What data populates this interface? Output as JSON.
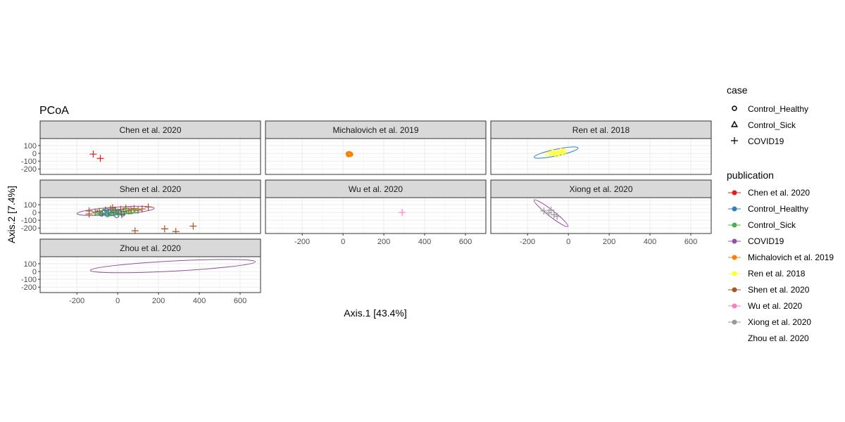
{
  "chart_data": {
    "type": "scatter",
    "title": "PCoA",
    "xlabel": "Axis.1   [43.4%]",
    "ylabel": "Axis.2   [7.4%]",
    "xlim": [
      -380,
      700
    ],
    "ylim": [
      -270,
      190
    ],
    "xticks": [
      -200,
      0,
      200,
      400,
      600
    ],
    "xtick_labels": [
      "-200",
      "0",
      "200",
      "400",
      "600"
    ],
    "yticks": [
      100,
      0,
      -100,
      -200
    ],
    "ytick_labels": [
      "100",
      "0",
      "-100",
      "-200"
    ],
    "grid": true,
    "legend_position": "right",
    "legends": {
      "case": {
        "title": "case",
        "entries": [
          {
            "label": "Control_Healthy",
            "shape": "circle"
          },
          {
            "label": "Control_Sick",
            "shape": "triangle"
          },
          {
            "label": "COVID19",
            "shape": "plus"
          }
        ]
      },
      "publication": {
        "title": "publication",
        "entries": [
          {
            "label": "Chen et al. 2020",
            "color": "#E41A1C"
          },
          {
            "label": "Control_Healthy",
            "color": "#377EB8"
          },
          {
            "label": "Control_Sick",
            "color": "#4DAF4A"
          },
          {
            "label": "COVID19",
            "color": "#984EA3"
          },
          {
            "label": "Michalovich et al. 2019",
            "color": "#FF7F00"
          },
          {
            "label": "Ren et al. 2018",
            "color": "#FFFF33"
          },
          {
            "label": "Shen et al. 2020",
            "color": "#A65628"
          },
          {
            "label": "Wu et al. 2020",
            "color": "#F781BF"
          },
          {
            "label": "Xiong et al. 2020",
            "color": "#999999"
          },
          {
            "label": "Zhou et al. 2020",
            "color": ""
          }
        ]
      }
    },
    "panels": [
      {
        "title": "Chen et al. 2020",
        "points": [
          {
            "x": -120,
            "y": -10,
            "shape": "plus",
            "color": "#E41A1C"
          },
          {
            "x": -85,
            "y": -65,
            "shape": "plus",
            "color": "#E41A1C"
          }
        ],
        "ellipses": []
      },
      {
        "title": "Michalovich et al. 2019",
        "points": [
          {
            "x": 25,
            "y": -5,
            "shape": "circle",
            "color": "#FF7F00"
          },
          {
            "x": 30,
            "y": -10,
            "shape": "circle",
            "color": "#FF7F00"
          },
          {
            "x": 35,
            "y": -8,
            "shape": "circle",
            "color": "#FF7F00"
          },
          {
            "x": 28,
            "y": -15,
            "shape": "circle",
            "color": "#FF7F00"
          },
          {
            "x": 32,
            "y": -3,
            "shape": "circle",
            "color": "#FF7F00"
          },
          {
            "x": 38,
            "y": -12,
            "shape": "circle",
            "color": "#FF7F00"
          },
          {
            "x": 27,
            "y": -18,
            "shape": "circle",
            "color": "#FF7F00"
          }
        ],
        "ellipses": []
      },
      {
        "title": "Ren et al. 2018",
        "points": [
          {
            "x": -100,
            "y": -10,
            "shape": "circle",
            "color": "#FFFF33"
          },
          {
            "x": -85,
            "y": 0,
            "shape": "circle",
            "color": "#FFFF33"
          },
          {
            "x": -70,
            "y": -5,
            "shape": "circle",
            "color": "#FFFF33"
          },
          {
            "x": -60,
            "y": 10,
            "shape": "circle",
            "color": "#FFFF33"
          },
          {
            "x": -50,
            "y": 0,
            "shape": "circle",
            "color": "#FFFF33"
          },
          {
            "x": -40,
            "y": 20,
            "shape": "circle",
            "color": "#FFFF33"
          },
          {
            "x": -30,
            "y": 15,
            "shape": "circle",
            "color": "#FFFF33"
          },
          {
            "x": -20,
            "y": 30,
            "shape": "circle",
            "color": "#FFFF33"
          },
          {
            "x": -25,
            "y": 5,
            "shape": "circle",
            "color": "#FFFF33"
          },
          {
            "x": -55,
            "y": -15,
            "shape": "circle",
            "color": "#FFFF33"
          },
          {
            "x": -35,
            "y": 35,
            "shape": "circle",
            "color": "#FFFF33"
          },
          {
            "x": -75,
            "y": 15,
            "shape": "circle",
            "color": "#FFFF33"
          }
        ],
        "ellipses": [
          {
            "cx": -60,
            "cy": 10,
            "rx": 110,
            "ry": 42,
            "angle": 12,
            "color": "#377EB8"
          }
        ]
      },
      {
        "title": "Shen et al. 2020",
        "points": [
          {
            "x": -140,
            "y": 20,
            "shape": "plus",
            "color": "#A65628"
          },
          {
            "x": -140,
            "y": -20,
            "shape": "plus",
            "color": "#A65628"
          },
          {
            "x": -110,
            "y": 5,
            "shape": "plus",
            "color": "#A65628"
          },
          {
            "x": -90,
            "y": 15,
            "shape": "plus",
            "color": "#A65628"
          },
          {
            "x": -75,
            "y": -10,
            "shape": "plus",
            "color": "#A65628"
          },
          {
            "x": -60,
            "y": 30,
            "shape": "plus",
            "color": "#A65628"
          },
          {
            "x": -45,
            "y": 0,
            "shape": "plus",
            "color": "#A65628"
          },
          {
            "x": -35,
            "y": 45,
            "shape": "plus",
            "color": "#A65628"
          },
          {
            "x": -20,
            "y": -5,
            "shape": "plus",
            "color": "#A65628"
          },
          {
            "x": -10,
            "y": 25,
            "shape": "plus",
            "color": "#A65628"
          },
          {
            "x": 5,
            "y": -15,
            "shape": "plus",
            "color": "#A65628"
          },
          {
            "x": 15,
            "y": 40,
            "shape": "plus",
            "color": "#A65628"
          },
          {
            "x": 30,
            "y": 10,
            "shape": "plus",
            "color": "#A65628"
          },
          {
            "x": 40,
            "y": 55,
            "shape": "plus",
            "color": "#A65628"
          },
          {
            "x": 55,
            "y": 20,
            "shape": "plus",
            "color": "#A65628"
          },
          {
            "x": 65,
            "y": 35,
            "shape": "plus",
            "color": "#A65628"
          },
          {
            "x": 80,
            "y": 50,
            "shape": "plus",
            "color": "#A65628"
          },
          {
            "x": 100,
            "y": 30,
            "shape": "plus",
            "color": "#A65628"
          },
          {
            "x": 120,
            "y": 45,
            "shape": "plus",
            "color": "#A65628"
          },
          {
            "x": 150,
            "y": 70,
            "shape": "plus",
            "color": "#A65628"
          },
          {
            "x": -25,
            "y": 60,
            "shape": "plus",
            "color": "#A65628"
          },
          {
            "x": 0,
            "y": 5,
            "shape": "plus",
            "color": "#A65628"
          },
          {
            "x": 20,
            "y": -30,
            "shape": "plus",
            "color": "#A65628"
          },
          {
            "x": 85,
            "y": -235,
            "shape": "plus",
            "color": "#A65628"
          },
          {
            "x": 230,
            "y": -210,
            "shape": "plus",
            "color": "#A65628"
          },
          {
            "x": 285,
            "y": -245,
            "shape": "plus",
            "color": "#A65628"
          },
          {
            "x": 370,
            "y": -175,
            "shape": "plus",
            "color": "#A65628"
          },
          {
            "x": -80,
            "y": -20,
            "shape": "circle",
            "color": "#377EB8"
          },
          {
            "x": -65,
            "y": 10,
            "shape": "circle",
            "color": "#377EB8"
          },
          {
            "x": -50,
            "y": -30,
            "shape": "circle",
            "color": "#377EB8"
          },
          {
            "x": -40,
            "y": 5,
            "shape": "circle",
            "color": "#377EB8"
          },
          {
            "x": -30,
            "y": -15,
            "shape": "circle",
            "color": "#377EB8"
          },
          {
            "x": -15,
            "y": 20,
            "shape": "circle",
            "color": "#377EB8"
          },
          {
            "x": -5,
            "y": -40,
            "shape": "circle",
            "color": "#377EB8"
          },
          {
            "x": 10,
            "y": 0,
            "shape": "circle",
            "color": "#377EB8"
          },
          {
            "x": 25,
            "y": -20,
            "shape": "circle",
            "color": "#377EB8"
          },
          {
            "x": -55,
            "y": 25,
            "shape": "circle",
            "color": "#377EB8"
          },
          {
            "x": -100,
            "y": 0,
            "shape": "triangle",
            "color": "#4DAF4A"
          },
          {
            "x": -70,
            "y": 15,
            "shape": "triangle",
            "color": "#4DAF4A"
          },
          {
            "x": -45,
            "y": -20,
            "shape": "triangle",
            "color": "#4DAF4A"
          },
          {
            "x": -20,
            "y": 10,
            "shape": "triangle",
            "color": "#4DAF4A"
          },
          {
            "x": 0,
            "y": -10,
            "shape": "triangle",
            "color": "#4DAF4A"
          },
          {
            "x": 35,
            "y": 25,
            "shape": "triangle",
            "color": "#4DAF4A"
          },
          {
            "x": 60,
            "y": 5,
            "shape": "triangle",
            "color": "#4DAF4A"
          },
          {
            "x": 90,
            "y": 15,
            "shape": "triangle",
            "color": "#4DAF4A"
          }
        ],
        "ellipses": [
          {
            "cx": -10,
            "cy": 20,
            "rx": 190,
            "ry": 48,
            "angle": 4,
            "color": "#984EA3"
          },
          {
            "cx": -30,
            "cy": 0,
            "rx": 75,
            "ry": 28,
            "angle": 0,
            "color": "#377EB8"
          },
          {
            "cx": -15,
            "cy": 5,
            "rx": 105,
            "ry": 30,
            "angle": 3,
            "color": "#4DAF4A"
          }
        ]
      },
      {
        "title": "Wu et al. 2020",
        "points": [
          {
            "x": 290,
            "y": 0,
            "shape": "plus",
            "color": "#F781BF"
          }
        ],
        "ellipses": []
      },
      {
        "title": "Xiong et al. 2020",
        "points": [
          {
            "x": -120,
            "y": 20,
            "shape": "plus",
            "color": "#999999"
          },
          {
            "x": -95,
            "y": -5,
            "shape": "plus",
            "color": "#999999"
          },
          {
            "x": -85,
            "y": 30,
            "shape": "plus",
            "color": "#999999"
          },
          {
            "x": -70,
            "y": -30,
            "shape": "plus",
            "color": "#999999"
          },
          {
            "x": -55,
            "y": -50,
            "shape": "plus",
            "color": "#999999"
          }
        ],
        "ellipses": [
          {
            "cx": -85,
            "cy": -10,
            "rx": 105,
            "ry": 40,
            "angle": -38,
            "color": "#984EA3"
          }
        ]
      },
      {
        "title": "Zhou et al. 2020",
        "points": [],
        "ellipses": [
          {
            "cx": 270,
            "cy": 70,
            "rx": 405,
            "ry": 65,
            "angle": 3,
            "color": "#984EA3"
          }
        ]
      }
    ]
  }
}
